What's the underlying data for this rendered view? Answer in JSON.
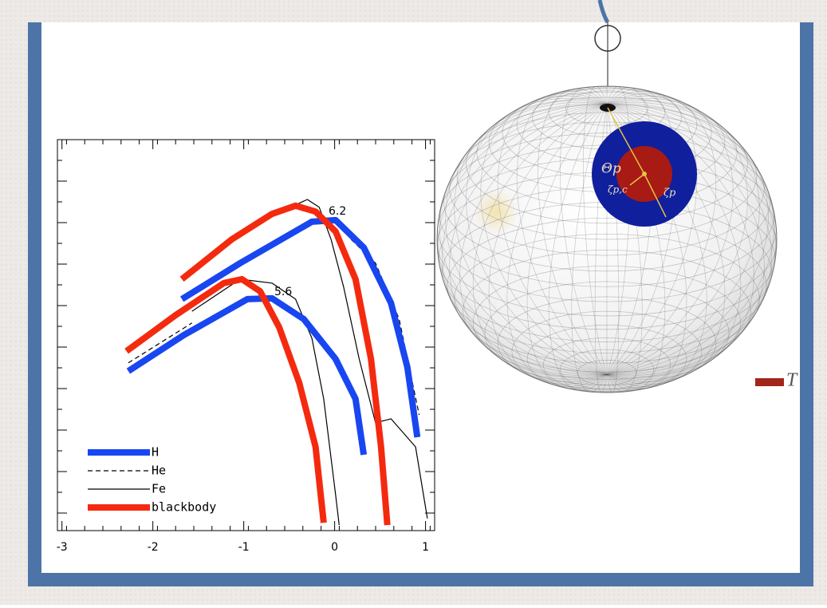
{
  "chart_data": {
    "type": "line",
    "xlim": [
      -3.05,
      1.1
    ],
    "ylim": [
      0,
      10
    ],
    "xticks": [
      -3,
      -2,
      -1,
      0,
      1
    ],
    "legend": "lower left",
    "annotations": [
      "6.2",
      "5.6"
    ],
    "series": [
      {
        "name": "H",
        "color": "#1846f0",
        "style": "solid",
        "line_width": 8,
        "x": [
          -1.68,
          -1.04,
          -0.25,
          0.01,
          0.32,
          0.62,
          0.8,
          0.91,
          null,
          -2.27,
          -1.66,
          -0.96,
          -0.69,
          -0.34,
          0.01,
          0.23,
          0.32
        ],
        "values": [
          5.92,
          6.84,
          7.9,
          7.94,
          7.24,
          5.82,
          4.18,
          2.39,
          null,
          4.08,
          5.0,
          5.92,
          5.94,
          5.41,
          4.39,
          3.37,
          1.94
        ]
      },
      {
        "name": "He",
        "color": "#000000",
        "style": "dashed",
        "line_width": 1.2,
        "x": [
          0.18,
          0.45,
          0.71,
          0.93,
          null,
          -2.27,
          -1.57
        ],
        "values": [
          7.45,
          6.84,
          5.41,
          2.96,
          null,
          4.29,
          5.31
        ]
      },
      {
        "name": "Fe",
        "color": "#000000",
        "style": "solid",
        "line_width": 1.2,
        "x": [
          -0.78,
          -0.3,
          -0.17,
          -0.04,
          0.1,
          0.27,
          0.45,
          0.62,
          0.89,
          1.02,
          null,
          -1.57,
          -1.04,
          -0.69,
          -0.43,
          -0.25,
          -0.12,
          0.01,
          0.05
        ],
        "values": [
          7.96,
          8.47,
          8.27,
          7.45,
          6.22,
          4.39,
          2.76,
          2.86,
          2.14,
          0.31,
          null,
          5.61,
          6.43,
          6.33,
          5.92,
          4.92,
          3.37,
          0.92,
          0.14
        ]
      },
      {
        "name": "blackbody",
        "color": "#f42a0f",
        "style": "solid",
        "line_width": 8,
        "x": [
          -1.68,
          -1.13,
          -0.69,
          -0.43,
          -0.21,
          0.01,
          0.23,
          0.4,
          0.51,
          0.58,
          null,
          -2.29,
          -1.75,
          -1.22,
          -1.02,
          -0.82,
          -0.61,
          -0.39,
          -0.21,
          -0.12
        ],
        "values": [
          6.43,
          7.45,
          8.1,
          8.31,
          8.16,
          7.65,
          6.43,
          4.39,
          2.14,
          0.14,
          null,
          4.59,
          5.51,
          6.33,
          6.43,
          6.12,
          5.2,
          3.78,
          2.14,
          0.2
        ]
      }
    ]
  },
  "diagram": {
    "labels": [
      "Θp",
      "ζp,c",
      "ζp"
    ],
    "side_text": "T"
  }
}
